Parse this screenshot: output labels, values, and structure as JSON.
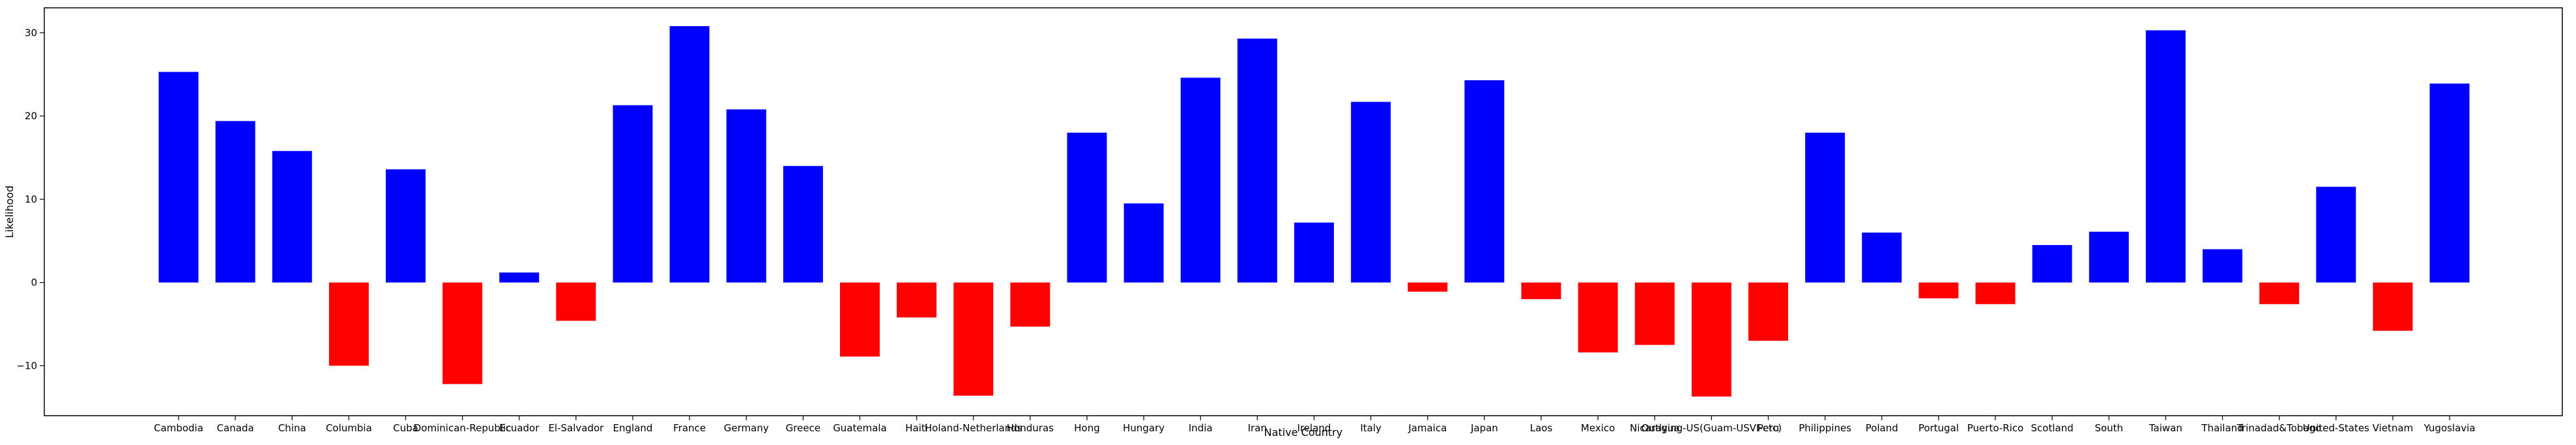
{
  "chart_data": {
    "type": "bar",
    "xlabel": "Native Country",
    "ylabel": "Likelihood",
    "ylim": [
      -16,
      33
    ],
    "yticks": [
      -10,
      0,
      10,
      20,
      30
    ],
    "ytick_labels": [
      "−10",
      "0",
      "10",
      "20",
      "30"
    ],
    "grid": false,
    "legend": "none",
    "colors": {
      "positive": "#0000ff",
      "negative": "#ff0000"
    },
    "categories": [
      "Cambodia",
      "Canada",
      "China",
      "Columbia",
      "Cuba",
      "Dominican-Republic",
      "Ecuador",
      "El-Salvador",
      "England",
      "France",
      "Germany",
      "Greece",
      "Guatemala",
      "Haiti",
      "Holand-Netherlands",
      "Honduras",
      "Hong",
      "Hungary",
      "India",
      "Iran",
      "Ireland",
      "Italy",
      "Jamaica",
      "Japan",
      "Laos",
      "Mexico",
      "Nicaragua",
      "Outlying-US(Guam-USVI-etc)",
      "Peru",
      "Philippines",
      "Poland",
      "Portugal",
      "Puerto-Rico",
      "Scotland",
      "South",
      "Taiwan",
      "Thailand",
      "Trinadad&Tobago",
      "United-States",
      "Vietnam",
      "Yugoslavia"
    ],
    "values": [
      25.3,
      19.4,
      15.8,
      -10.0,
      13.6,
      -12.2,
      1.2,
      -4.6,
      21.3,
      30.8,
      20.8,
      14.0,
      -8.9,
      -4.2,
      -13.6,
      -5.3,
      18.0,
      9.5,
      24.6,
      29.3,
      7.2,
      21.7,
      -1.1,
      24.3,
      -2.0,
      -8.4,
      -7.5,
      -13.7,
      -7.0,
      18.0,
      6.0,
      -1.9,
      -2.6,
      4.5,
      6.1,
      30.3,
      4.0,
      -2.6,
      11.5,
      -5.8,
      23.9
    ]
  }
}
